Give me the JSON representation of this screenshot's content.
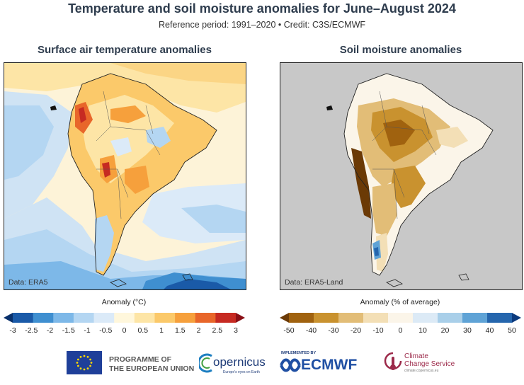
{
  "title": "Temperature and soil moisture anomalies for June–August 2024",
  "subtitle": "Reference period: 1991–2020 • Credit: C3S/ECMWF",
  "panels": {
    "left": {
      "title": "Surface air temperature anomalies",
      "source": "Data: ERA5",
      "colorbar_label": "Anomaly (°C)",
      "ticks": [
        "-3",
        "-2.5",
        "-2",
        "-1.5",
        "-1",
        "-0.5",
        "0",
        "0.5",
        "1",
        "1.5",
        "2",
        "2.5",
        "3"
      ],
      "colors": [
        "#08306b",
        "#1a5aa8",
        "#3f8fd0",
        "#7db8e8",
        "#b4d6f2",
        "#dbeaf8",
        "#fff7dc",
        "#fde5a6",
        "#fbc96a",
        "#f6a03c",
        "#e8662a",
        "#c62a22",
        "#8a0f16"
      ]
    },
    "right": {
      "title": "Soil moisture anomalies",
      "source": "Data: ERA5-Land",
      "colorbar_label": "Anomaly (% of average)",
      "ticks": [
        "-50",
        "-40",
        "-30",
        "-20",
        "-10",
        "0",
        "10",
        "20",
        "30",
        "40",
        "50"
      ],
      "colors": [
        "#6b3a06",
        "#a0620f",
        "#c9922f",
        "#e2bd77",
        "#f3dfb6",
        "#fbf5e9",
        "#dceaf6",
        "#a9cfe9",
        "#5fa3d6",
        "#2566ad",
        "#0b3a7d"
      ]
    }
  },
  "logos": {
    "eu_line1": "PROGRAMME OF",
    "eu_line2": "THE EUROPEAN UNION",
    "copernicus": "opernicus",
    "copernicus_tagline": "Europe's eyes on Earth",
    "implemented_by": "IMPLEMENTED BY",
    "ecmwf": "ECMWF",
    "c3s_line1": "Climate",
    "c3s_line2": "Change Service",
    "c3s_url": "climate.copernicus.eu"
  }
}
